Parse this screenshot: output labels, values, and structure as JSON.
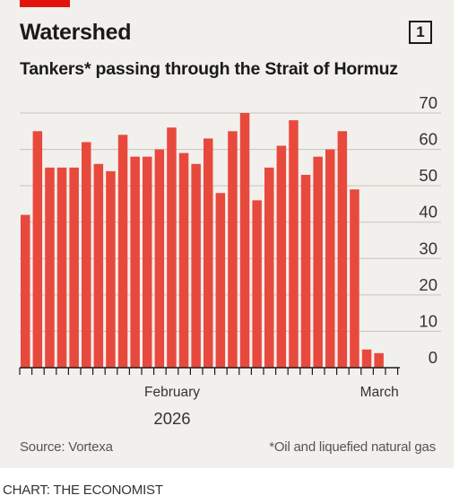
{
  "header": {
    "title": "Watershed",
    "chart_number": "1",
    "subtitle": "Tankers* passing through the Strait of Hormuz"
  },
  "footer": {
    "source": "Source: Vortexa",
    "footnote": "*Oil and liquefied natural gas",
    "credit": "CHART: THE ECONOMIST"
  },
  "colors": {
    "bar": "#e8493d",
    "accent": "#e3120b",
    "grid": "#c7c4bd",
    "card_background": "#f2f0ec"
  },
  "chart_data": {
    "type": "bar",
    "title": "Watershed",
    "subtitle": "Tankers* passing through the Strait of Hormuz",
    "ylim": [
      0,
      70
    ],
    "yticks": [
      0,
      10,
      20,
      30,
      40,
      50,
      60,
      70
    ],
    "y_axis_position": "right",
    "grid": true,
    "x_labels": [
      {
        "label": "February",
        "index": 12
      },
      {
        "label": "March",
        "index": 29
      }
    ],
    "year_label": "2026",
    "values": [
      42,
      65,
      55,
      55,
      55,
      62,
      56,
      54,
      64,
      58,
      58,
      60,
      66,
      59,
      56,
      63,
      48,
      65,
      70,
      46,
      55,
      61,
      68,
      53,
      58,
      60,
      65,
      49,
      5,
      4
    ]
  }
}
